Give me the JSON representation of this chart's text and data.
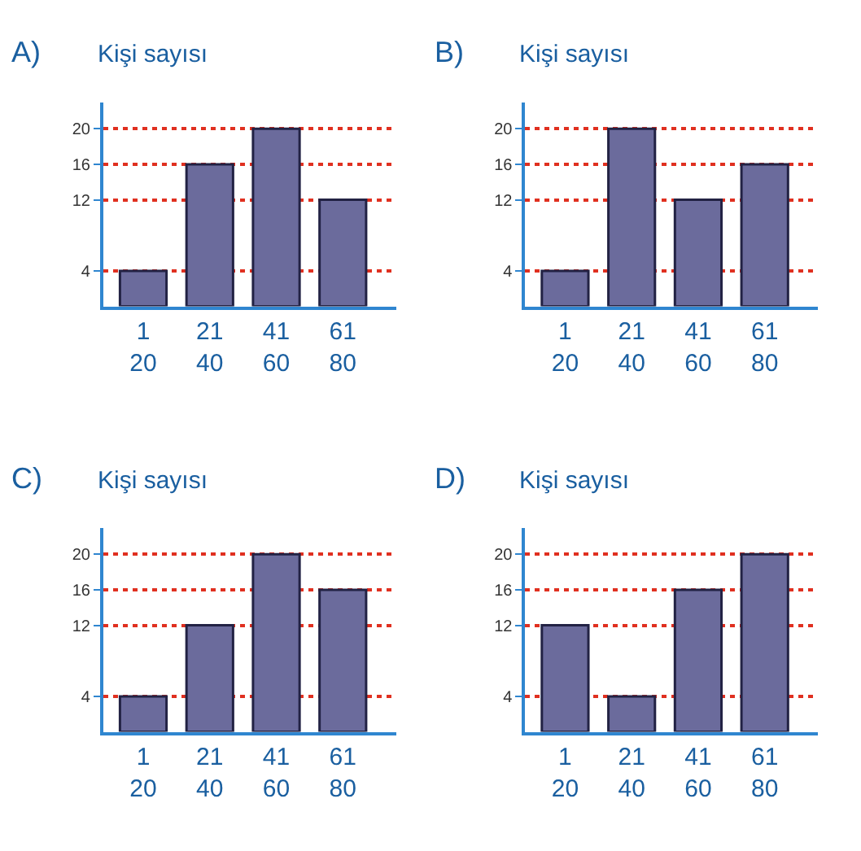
{
  "chart_data": [
    {
      "type": "bar",
      "title": "A)",
      "ylabel": "Kişi sayısı",
      "categories": [
        "1\n20",
        "21\n40",
        "41\n60",
        "61\n80"
      ],
      "values": [
        4,
        16,
        20,
        12
      ],
      "color": "#6b6b9c",
      "ylim": [
        0,
        23
      ],
      "yticks": [
        4,
        12,
        16,
        20
      ],
      "grid": "y"
    },
    {
      "type": "bar",
      "title": "B)",
      "ylabel": "Kişi sayısı",
      "categories": [
        "1\n20",
        "21\n40",
        "41\n60",
        "61\n80"
      ],
      "values": [
        4,
        20,
        12,
        16
      ],
      "color": "#6b6b9c",
      "ylim": [
        0,
        23
      ],
      "yticks": [
        4,
        12,
        16,
        20
      ],
      "grid": "y"
    },
    {
      "type": "bar",
      "title": "C)",
      "ylabel": "Kişi sayısı",
      "categories": [
        "1\n20",
        "21\n40",
        "41\n60",
        "61\n80"
      ],
      "values": [
        4,
        12,
        20,
        16
      ],
      "color": "#6b6b9c",
      "ylim": [
        0,
        23
      ],
      "yticks": [
        4,
        12,
        16,
        20
      ],
      "grid": "y"
    },
    {
      "type": "bar",
      "title": "D)",
      "ylabel": "Kişi sayısı",
      "categories": [
        "1\n20",
        "21\n40",
        "41\n60",
        "61\n80"
      ],
      "values": [
        12,
        4,
        16,
        20
      ],
      "color": "#6b6b9c",
      "ylim": [
        0,
        23
      ],
      "yticks": [
        4,
        12,
        16,
        20
      ],
      "grid": "y"
    }
  ]
}
